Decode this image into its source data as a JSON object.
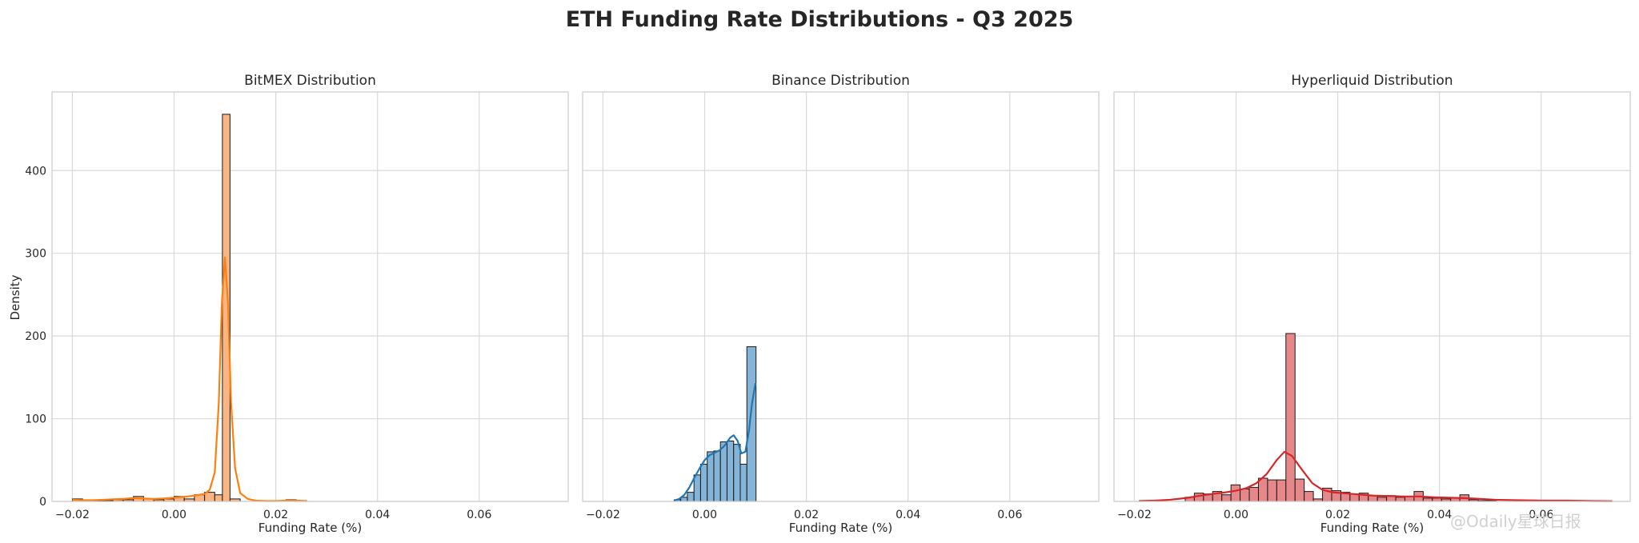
{
  "figure_title": "ETH Funding Rate Distributions - Q3 2025",
  "watermark": "@Odaily星球日报",
  "shared_ylabel": "Density",
  "chart_data": [
    {
      "type": "histogram",
      "title": "BitMEX Distribution",
      "xlabel": "Funding Rate (%)",
      "ylabel": "Density",
      "color": "#ff7f0e",
      "bar_fill": "#f9b584",
      "xlim": [
        -0.024,
        0.0775
      ],
      "ylim": [
        0,
        495
      ],
      "xticks": [
        -0.02,
        0.0,
        0.02,
        0.04,
        0.06
      ],
      "xtick_labels": [
        "−0.02",
        "0.00",
        "0.02",
        "0.04",
        "0.06"
      ],
      "yticks": [
        0,
        100,
        200,
        300,
        400
      ],
      "ytick_labels": [
        "0",
        "100",
        "200",
        "300",
        "400"
      ],
      "grid": true,
      "bins": [
        {
          "x0": -0.02,
          "x1": -0.018,
          "value": 3
        },
        {
          "x0": -0.018,
          "x1": -0.016,
          "value": 1
        },
        {
          "x0": -0.016,
          "x1": -0.014,
          "value": 1
        },
        {
          "x0": -0.014,
          "x1": -0.012,
          "value": 1
        },
        {
          "x0": -0.012,
          "x1": -0.01,
          "value": 2
        },
        {
          "x0": -0.01,
          "x1": -0.008,
          "value": 2
        },
        {
          "x0": -0.008,
          "x1": -0.006,
          "value": 6
        },
        {
          "x0": -0.006,
          "x1": -0.004,
          "value": 3
        },
        {
          "x0": -0.004,
          "x1": -0.002,
          "value": 2
        },
        {
          "x0": -0.002,
          "x1": 0.0,
          "value": 3
        },
        {
          "x0": 0.0,
          "x1": 0.002,
          "value": 6
        },
        {
          "x0": 0.002,
          "x1": 0.004,
          "value": 3
        },
        {
          "x0": 0.004,
          "x1": 0.006,
          "value": 8
        },
        {
          "x0": 0.006,
          "x1": 0.008,
          "value": 11
        },
        {
          "x0": 0.008,
          "x1": 0.0095,
          "value": 8
        },
        {
          "x0": 0.0095,
          "x1": 0.011,
          "value": 468
        },
        {
          "x0": 0.011,
          "x1": 0.013,
          "value": 3
        },
        {
          "x0": 0.022,
          "x1": 0.024,
          "value": 2
        },
        {
          "x0": 0.024,
          "x1": 0.026,
          "value": 1
        }
      ],
      "kde": [
        [
          -0.02,
          2
        ],
        [
          -0.018,
          1.5
        ],
        [
          -0.016,
          1.5
        ],
        [
          -0.014,
          2
        ],
        [
          -0.012,
          2.5
        ],
        [
          -0.01,
          3
        ],
        [
          -0.008,
          4
        ],
        [
          -0.006,
          3.5
        ],
        [
          -0.004,
          3
        ],
        [
          -0.002,
          3.5
        ],
        [
          0.0,
          4.5
        ],
        [
          0.002,
          5.5
        ],
        [
          0.004,
          7
        ],
        [
          0.006,
          9
        ],
        [
          0.007,
          14
        ],
        [
          0.008,
          35
        ],
        [
          0.0088,
          120
        ],
        [
          0.0094,
          240
        ],
        [
          0.01,
          295
        ],
        [
          0.0106,
          240
        ],
        [
          0.0112,
          120
        ],
        [
          0.012,
          40
        ],
        [
          0.013,
          10
        ],
        [
          0.0145,
          3
        ],
        [
          0.016,
          1
        ],
        [
          0.018,
          0.5
        ],
        [
          0.02,
          0.5
        ],
        [
          0.022,
          1
        ],
        [
          0.024,
          1
        ],
        [
          0.026,
          0.5
        ]
      ]
    },
    {
      "type": "histogram",
      "title": "Binance Distribution",
      "xlabel": "Funding Rate (%)",
      "ylabel": "",
      "color": "#1f77b4",
      "bar_fill": "#84b4d8",
      "xlim": [
        -0.024,
        0.0775
      ],
      "ylim": [
        0,
        495
      ],
      "xticks": [
        -0.02,
        0.0,
        0.02,
        0.04,
        0.06
      ],
      "xtick_labels": [
        "−0.02",
        "0.00",
        "0.02",
        "0.04",
        "0.06"
      ],
      "yticks": [
        0,
        100,
        200,
        300,
        400
      ],
      "grid": true,
      "bins": [
        {
          "x0": -0.006,
          "x1": -0.0047,
          "value": 2
        },
        {
          "x0": -0.0047,
          "x1": -0.0034,
          "value": 5
        },
        {
          "x0": -0.0034,
          "x1": -0.0021,
          "value": 11
        },
        {
          "x0": -0.0021,
          "x1": -0.0008,
          "value": 32
        },
        {
          "x0": -0.0008,
          "x1": 0.0005,
          "value": 45
        },
        {
          "x0": 0.0005,
          "x1": 0.0018,
          "value": 60
        },
        {
          "x0": 0.0018,
          "x1": 0.0031,
          "value": 61
        },
        {
          "x0": 0.0031,
          "x1": 0.0044,
          "value": 72
        },
        {
          "x0": 0.0044,
          "x1": 0.0057,
          "value": 73
        },
        {
          "x0": 0.0057,
          "x1": 0.007,
          "value": 69
        },
        {
          "x0": 0.007,
          "x1": 0.0083,
          "value": 45
        },
        {
          "x0": 0.0083,
          "x1": 0.0101,
          "value": 187
        }
      ],
      "kde": [
        [
          -0.006,
          1
        ],
        [
          -0.005,
          3
        ],
        [
          -0.004,
          8
        ],
        [
          -0.003,
          17
        ],
        [
          -0.002,
          29
        ],
        [
          -0.001,
          40
        ],
        [
          0.0,
          50
        ],
        [
          0.001,
          56
        ],
        [
          0.002,
          59
        ],
        [
          0.003,
          62
        ],
        [
          0.004,
          68
        ],
        [
          0.005,
          77
        ],
        [
          0.0057,
          80
        ],
        [
          0.0065,
          73
        ],
        [
          0.0072,
          58
        ],
        [
          0.008,
          60
        ],
        [
          0.0087,
          85
        ],
        [
          0.0093,
          118
        ],
        [
          0.01,
          143
        ]
      ]
    },
    {
      "type": "histogram",
      "title": "Hyperliquid Distribution",
      "xlabel": "Funding Rate (%)",
      "ylabel": "",
      "color": "#d62728",
      "bar_fill": "#e6888a",
      "xlim": [
        -0.024,
        0.0775
      ],
      "ylim": [
        0,
        495
      ],
      "xticks": [
        -0.02,
        0.0,
        0.02,
        0.04,
        0.06
      ],
      "xtick_labels": [
        "−0.02",
        "0.00",
        "0.02",
        "0.04",
        "0.06"
      ],
      "yticks": [
        0,
        100,
        200,
        300,
        400
      ],
      "grid": true,
      "bins": [
        {
          "x0": -0.019,
          "x1": -0.0172,
          "value": 1
        },
        {
          "x0": -0.0172,
          "x1": -0.0154,
          "value": 1
        },
        {
          "x0": -0.01,
          "x1": -0.0082,
          "value": 5
        },
        {
          "x0": -0.0082,
          "x1": -0.0064,
          "value": 10
        },
        {
          "x0": -0.0064,
          "x1": -0.0046,
          "value": 9
        },
        {
          "x0": -0.0046,
          "x1": -0.0028,
          "value": 12
        },
        {
          "x0": -0.0028,
          "x1": -0.001,
          "value": 8
        },
        {
          "x0": -0.001,
          "x1": 0.0008,
          "value": 20
        },
        {
          "x0": 0.0008,
          "x1": 0.0026,
          "value": 15
        },
        {
          "x0": 0.0026,
          "x1": 0.0044,
          "value": 17
        },
        {
          "x0": 0.0044,
          "x1": 0.0062,
          "value": 28
        },
        {
          "x0": 0.0062,
          "x1": 0.008,
          "value": 26
        },
        {
          "x0": 0.008,
          "x1": 0.0098,
          "value": 26
        },
        {
          "x0": 0.0098,
          "x1": 0.0116,
          "value": 203
        },
        {
          "x0": 0.0116,
          "x1": 0.0134,
          "value": 27
        },
        {
          "x0": 0.0134,
          "x1": 0.0152,
          "value": 12
        },
        {
          "x0": 0.0152,
          "x1": 0.017,
          "value": 3
        },
        {
          "x0": 0.017,
          "x1": 0.0188,
          "value": 16
        },
        {
          "x0": 0.0188,
          "x1": 0.0206,
          "value": 13
        },
        {
          "x0": 0.0206,
          "x1": 0.0224,
          "value": 11
        },
        {
          "x0": 0.0224,
          "x1": 0.0242,
          "value": 9
        },
        {
          "x0": 0.0242,
          "x1": 0.026,
          "value": 10
        },
        {
          "x0": 0.026,
          "x1": 0.0278,
          "value": 7
        },
        {
          "x0": 0.0278,
          "x1": 0.0296,
          "value": 5
        },
        {
          "x0": 0.0296,
          "x1": 0.0314,
          "value": 7
        },
        {
          "x0": 0.0314,
          "x1": 0.0332,
          "value": 5
        },
        {
          "x0": 0.0332,
          "x1": 0.035,
          "value": 6
        },
        {
          "x0": 0.035,
          "x1": 0.0368,
          "value": 12
        },
        {
          "x0": 0.0368,
          "x1": 0.0386,
          "value": 4
        },
        {
          "x0": 0.0386,
          "x1": 0.0404,
          "value": 4
        },
        {
          "x0": 0.0404,
          "x1": 0.0422,
          "value": 3
        },
        {
          "x0": 0.0422,
          "x1": 0.044,
          "value": 4
        },
        {
          "x0": 0.044,
          "x1": 0.0458,
          "value": 8
        },
        {
          "x0": 0.0458,
          "x1": 0.0476,
          "value": 2
        },
        {
          "x0": 0.0476,
          "x1": 0.0494,
          "value": 1
        },
        {
          "x0": 0.0494,
          "x1": 0.0512,
          "value": 1
        }
      ],
      "kde": [
        [
          -0.019,
          0.5
        ],
        [
          -0.016,
          1
        ],
        [
          -0.013,
          2
        ],
        [
          -0.01,
          4
        ],
        [
          -0.008,
          6
        ],
        [
          -0.006,
          8
        ],
        [
          -0.004,
          9.5
        ],
        [
          -0.002,
          11
        ],
        [
          0.0,
          13
        ],
        [
          0.002,
          16
        ],
        [
          0.004,
          22
        ],
        [
          0.006,
          33
        ],
        [
          0.008,
          50
        ],
        [
          0.0095,
          60
        ],
        [
          0.011,
          55
        ],
        [
          0.013,
          38
        ],
        [
          0.015,
          22
        ],
        [
          0.017,
          14
        ],
        [
          0.019,
          11
        ],
        [
          0.021,
          10
        ],
        [
          0.023,
          9
        ],
        [
          0.025,
          8
        ],
        [
          0.027,
          7
        ],
        [
          0.03,
          6.5
        ],
        [
          0.033,
          6
        ],
        [
          0.036,
          6
        ],
        [
          0.039,
          5
        ],
        [
          0.042,
          4.5
        ],
        [
          0.045,
          4
        ],
        [
          0.048,
          3
        ],
        [
          0.051,
          2
        ],
        [
          0.055,
          1.5
        ],
        [
          0.06,
          1
        ],
        [
          0.065,
          1
        ],
        [
          0.07,
          0.5
        ],
        [
          0.074,
          0.3
        ]
      ]
    }
  ]
}
